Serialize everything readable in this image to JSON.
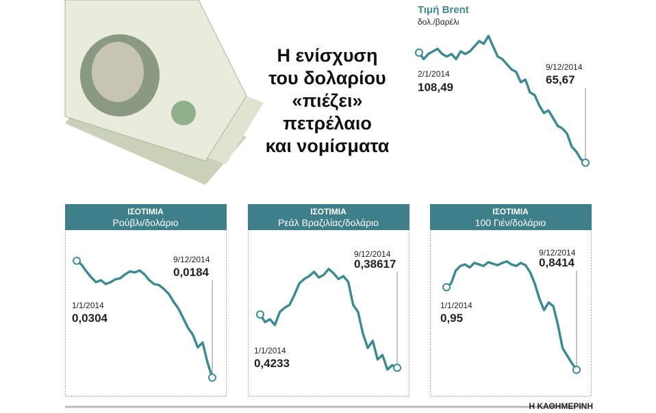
{
  "headline": [
    "Η ενίσχυση",
    "του δολαρίου",
    "«πιέζει»",
    "πετρέλαιο",
    "και νομίσματα"
  ],
  "credit": "Η ΚΑΘΗΜΕΡΙΝΗ",
  "chart_data": [
    {
      "type": "line",
      "title": "Τιμή Brent",
      "subtitle": "δολ./βαρέλι",
      "color": "#3d8a93",
      "ylim": [
        65,
        117
      ],
      "categories": [
        "2/1/2014",
        null,
        null,
        null,
        null,
        null,
        null,
        null,
        null,
        null,
        null,
        null,
        null,
        null,
        null,
        null,
        null,
        null,
        null,
        null,
        null,
        null,
        null,
        null,
        null,
        null,
        null,
        null,
        null,
        null,
        null,
        null,
        null,
        null,
        null,
        null,
        "9/12/2014"
      ],
      "values": [
        108.49,
        106,
        108,
        109,
        110,
        108,
        107,
        108,
        106,
        109,
        108,
        109,
        111,
        113,
        112,
        115,
        111,
        107,
        106,
        104,
        102,
        101,
        97,
        98,
        93,
        92,
        88,
        85,
        86,
        83,
        80,
        79,
        77,
        72,
        70,
        67,
        65.67
      ],
      "value_labels": [
        "108,49",
        null,
        null,
        null,
        null,
        null,
        null,
        null,
        null,
        null,
        null,
        null,
        null,
        null,
        null,
        null,
        null,
        null,
        null,
        null,
        null,
        null,
        null,
        null,
        null,
        null,
        null,
        null,
        null,
        null,
        null,
        null,
        null,
        null,
        null,
        null,
        "65,67"
      ]
    },
    {
      "type": "line",
      "title": "ΙΣΟΤΙΜΙΑ",
      "subtitle": "Ρούβλι/δολάριο",
      "color": "#3d8a93",
      "ylim": [
        0.018,
        0.0308
      ],
      "categories": [
        "1/1/2014",
        null,
        null,
        null,
        null,
        null,
        null,
        null,
        null,
        null,
        null,
        null,
        null,
        null,
        null,
        null,
        null,
        null,
        null,
        null,
        null,
        null,
        null,
        null,
        null,
        null,
        null,
        null,
        "9/12/2014"
      ],
      "values": [
        0.0304,
        0.03,
        0.0293,
        0.0287,
        0.0282,
        0.0284,
        0.028,
        0.0282,
        0.0285,
        0.0286,
        0.029,
        0.0293,
        0.0292,
        0.0294,
        0.029,
        0.0284,
        0.028,
        0.0279,
        0.0275,
        0.027,
        0.0262,
        0.0255,
        0.0245,
        0.0235,
        0.0228,
        0.0215,
        0.022,
        0.02,
        0.0184
      ],
      "value_labels": [
        "0,0304",
        null,
        null,
        null,
        null,
        null,
        null,
        null,
        null,
        null,
        null,
        null,
        null,
        null,
        null,
        null,
        null,
        null,
        null,
        null,
        null,
        null,
        null,
        null,
        null,
        null,
        null,
        null,
        "0,0184"
      ]
    },
    {
      "type": "line",
      "title": "ΙΣΟΤΙΜΙΑ",
      "subtitle": "Ρεάλ Βραζιλίας/δολάριο",
      "color": "#3d8a93",
      "ylim": [
        0.38,
        0.462
      ],
      "categories": [
        "1/1/2014",
        null,
        null,
        null,
        null,
        null,
        null,
        null,
        null,
        null,
        null,
        null,
        null,
        null,
        null,
        null,
        null,
        null,
        null,
        null,
        null,
        null,
        null,
        null,
        null,
        null,
        null,
        null,
        "9/12/2014"
      ],
      "values": [
        0.4233,
        0.418,
        0.42,
        0.416,
        0.425,
        0.428,
        0.43,
        0.437,
        0.445,
        0.448,
        0.45,
        0.453,
        0.449,
        0.451,
        0.455,
        0.452,
        0.448,
        0.45,
        0.446,
        0.43,
        0.425,
        0.41,
        0.4,
        0.405,
        0.392,
        0.395,
        0.385,
        0.388,
        0.38617
      ],
      "value_labels": [
        "0,4233",
        null,
        null,
        null,
        null,
        null,
        null,
        null,
        null,
        null,
        null,
        null,
        null,
        null,
        null,
        null,
        null,
        null,
        null,
        null,
        null,
        null,
        null,
        null,
        null,
        null,
        null,
        null,
        "0,38617"
      ]
    },
    {
      "type": "line",
      "title": "ΙΣΟΤΙΜΙΑ",
      "subtitle": "100 Γιέν/δολάριο",
      "color": "#3d8a93",
      "ylim": [
        0.835,
        0.99
      ],
      "categories": [
        "1/1/2014",
        null,
        null,
        null,
        null,
        null,
        null,
        null,
        null,
        null,
        null,
        null,
        null,
        null,
        null,
        null,
        null,
        null,
        null,
        null,
        null,
        null,
        null,
        null,
        null,
        null,
        null,
        null,
        "9/12/2014"
      ],
      "values": [
        0.95,
        0.955,
        0.972,
        0.978,
        0.98,
        0.976,
        0.982,
        0.98,
        0.978,
        0.983,
        0.981,
        0.979,
        0.982,
        0.984,
        0.98,
        0.978,
        0.982,
        0.979,
        0.97,
        0.955,
        0.935,
        0.92,
        0.93,
        0.925,
        0.9,
        0.87,
        0.86,
        0.85,
        0.8414
      ],
      "value_labels": [
        "0,95",
        null,
        null,
        null,
        null,
        null,
        null,
        null,
        null,
        null,
        null,
        null,
        null,
        null,
        null,
        null,
        null,
        null,
        null,
        null,
        null,
        null,
        null,
        null,
        null,
        null,
        null,
        null,
        "0,8414"
      ]
    }
  ]
}
